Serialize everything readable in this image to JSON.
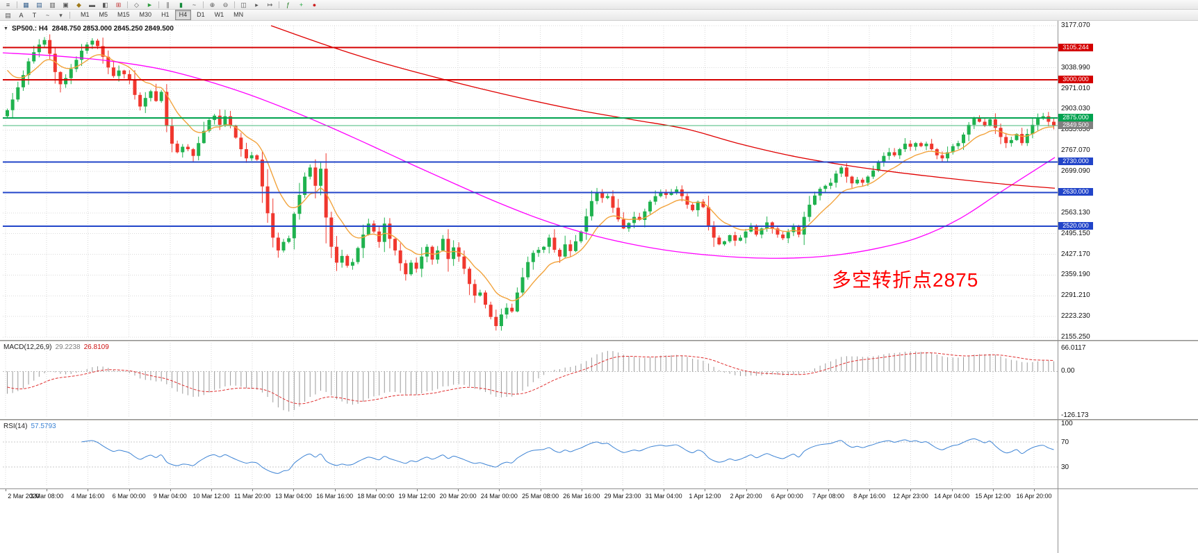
{
  "toolbar": {
    "row1_groups": [
      [
        {
          "name": "toolbars-menu-icon",
          "glyph": "≡",
          "color": "#555555"
        }
      ],
      [
        {
          "name": "new-chart-icon",
          "glyph": "▦",
          "color": "#36618e"
        },
        {
          "name": "profiles-icon",
          "glyph": "▤",
          "color": "#36618e"
        },
        {
          "name": "market-watch-icon",
          "glyph": "▥",
          "color": "#555555"
        },
        {
          "name": "data-window-icon",
          "glyph": "▣",
          "color": "#555555"
        },
        {
          "name": "navigator-icon",
          "glyph": "◆",
          "color": "#a07a1a"
        },
        {
          "name": "terminal-icon",
          "glyph": "▬",
          "color": "#555555"
        },
        {
          "name": "strategy-tester-icon",
          "glyph": "◧",
          "color": "#555555"
        },
        {
          "name": "new-order-icon",
          "glyph": "⊞",
          "color": "#c03030"
        }
      ],
      [
        {
          "name": "metaeditor-icon",
          "glyph": "◇",
          "color": "#555555"
        },
        {
          "name": "autotrading-icon",
          "glyph": "►",
          "color": "#2c9c3c"
        }
      ],
      [
        {
          "name": "bar-chart-icon",
          "glyph": "∥",
          "color": "#555555"
        },
        {
          "name": "candlestick-chart-icon",
          "glyph": "▮",
          "color": "#138a3a"
        },
        {
          "name": "line-chart-icon",
          "glyph": "~",
          "color": "#555555"
        }
      ],
      [
        {
          "name": "zoom-in-icon",
          "glyph": "⊕",
          "color": "#555555"
        },
        {
          "name": "zoom-out-icon",
          "glyph": "⊖",
          "color": "#555555"
        }
      ],
      [
        {
          "name": "tile-windows-icon",
          "glyph": "◫",
          "color": "#555555"
        },
        {
          "name": "auto-scroll-icon",
          "glyph": "▸",
          "color": "#555555"
        },
        {
          "name": "chart-shift-icon",
          "glyph": "↦",
          "color": "#555555"
        }
      ],
      [
        {
          "name": "indicators-icon",
          "glyph": "ƒ",
          "color": "#1d7a1d"
        },
        {
          "name": "add-object-icon",
          "glyph": "+",
          "color": "#1ea63c"
        },
        {
          "name": "record-icon",
          "glyph": "●",
          "color": "#cc2020"
        }
      ]
    ],
    "row2_icons": [
      {
        "name": "objects-list-icon",
        "glyph": "▤",
        "color": "#555555"
      },
      {
        "name": "text-tool-icon",
        "glyph": "A",
        "color": "#333333"
      },
      {
        "name": "text-label-icon",
        "glyph": "T",
        "color": "#333333"
      },
      {
        "name": "polyline-tool-icon",
        "glyph": "~",
        "color": "#555555"
      },
      {
        "name": "polyline-dropdown-icon",
        "glyph": "▾",
        "color": "#555555"
      }
    ],
    "timeframes": {
      "options": [
        "M1",
        "M5",
        "M15",
        "M30",
        "H1",
        "H4",
        "D1",
        "W1",
        "MN"
      ],
      "selected": "H4"
    }
  },
  "chart": {
    "dropdown_glyph": "▼",
    "title": {
      "symbol_period": "SP500.: H4",
      "ohlc": "2848.750 2853.000 2845.250 2849.500"
    },
    "annotation": {
      "text": "多空转折点2875",
      "color": "#ff0000"
    },
    "price_axis": {
      "labels": [
        "3177.070",
        "3038.990",
        "2971.010",
        "2903.030",
        "2835.050",
        "2767.070",
        "2699.090",
        "2563.130",
        "2495.150",
        "2427.170",
        "2359.190",
        "2291.210",
        "2223.230",
        "2155.250"
      ],
      "label_values": [
        3177.07,
        3038.99,
        2971.01,
        2903.03,
        2835.05,
        2767.07,
        2699.09,
        2563.13,
        2495.15,
        2427.17,
        2359.19,
        2291.21,
        2223.23,
        2155.25
      ],
      "badges": [
        {
          "label": "3105.244",
          "value": 3105.244,
          "color": "#d40000"
        },
        {
          "label": "3000.000",
          "value": 3000.0,
          "color": "#d40000"
        },
        {
          "label": "2875.000",
          "value": 2875.0,
          "color": "#00a24f"
        },
        {
          "label": "2849.500",
          "value": 2849.5,
          "color": "#808080"
        },
        {
          "label": "2730.000",
          "value": 2730.0,
          "color": "#2144c9"
        },
        {
          "label": "2630.000",
          "value": 2630.0,
          "color": "#2144c9"
        },
        {
          "label": "2520.000",
          "value": 2520.0,
          "color": "#2144c9"
        }
      ]
    },
    "hlines": [
      {
        "value": 3105.244,
        "color": "#d40000",
        "width": 2
      },
      {
        "value": 3000.0,
        "color": "#d40000",
        "width": 2
      },
      {
        "value": 2875.0,
        "color": "#00a24f",
        "width": 2
      },
      {
        "value": 2849.5,
        "color": "#46b878",
        "width": 1
      },
      {
        "value": 2730.0,
        "color": "#2144c9",
        "width": 2
      },
      {
        "value": 2630.0,
        "color": "#2144c9",
        "width": 2
      },
      {
        "value": 2520.0,
        "color": "#2144c9",
        "width": 2
      }
    ],
    "time_labels": [
      "2 Mar 2020",
      "3 Mar 08:00",
      "4 Mar 16:00",
      "6 Mar 00:00",
      "9 Mar 04:00",
      "10 Mar 12:00",
      "11 Mar 20:00",
      "13 Mar 04:00",
      "16 Mar 16:00",
      "18 Mar 00:00",
      "19 Mar 12:00",
      "20 Mar 20:00",
      "24 Mar 00:00",
      "25 Mar 08:00",
      "26 Mar 16:00",
      "29 Mar 23:00",
      "31 Mar 04:00",
      "1 Apr 12:00",
      "2 Apr 20:00",
      "6 Apr 00:00",
      "7 Apr 08:00",
      "8 Apr 16:00",
      "12 Apr 23:00",
      "14 Apr 04:00",
      "15 Apr 12:00",
      "16 Apr 20:00"
    ]
  },
  "chart_data": {
    "type": "candlestick",
    "symbol": "SP500",
    "timeframe": "H4",
    "title": "SP500.: H4",
    "last_ohlc": {
      "open": 2848.75,
      "high": 2853.0,
      "low": 2845.25,
      "close": 2849.5
    },
    "price_range": {
      "min": 2153.19,
      "max": 3177.07
    },
    "first_open": 2880,
    "closes": [
      2900,
      2935,
      2975,
      3015,
      3060,
      3090,
      3115,
      3130,
      3085,
      3025,
      2985,
      3005,
      3035,
      3065,
      3095,
      3115,
      3128,
      3110,
      3075,
      3040,
      3012,
      3030,
      3018,
      2998,
      2950,
      2912,
      2940,
      2962,
      2930,
      2960,
      2848,
      2790,
      2762,
      2780,
      2772,
      2750,
      2792,
      2832,
      2868,
      2882,
      2852,
      2880,
      2848,
      2810,
      2772,
      2742,
      2752,
      2738,
      2650,
      2562,
      2482,
      2440,
      2468,
      2480,
      2560,
      2622,
      2682,
      2712,
      2652,
      2708,
      2548,
      2452,
      2400,
      2422,
      2390,
      2402,
      2448,
      2492,
      2528,
      2502,
      2468,
      2528,
      2478,
      2440,
      2398,
      2362,
      2400,
      2380,
      2420,
      2452,
      2410,
      2440,
      2478,
      2412,
      2450,
      2420,
      2380,
      2330,
      2292,
      2302,
      2262,
      2222,
      2192,
      2230,
      2252,
      2240,
      2302,
      2352,
      2402,
      2432,
      2442,
      2452,
      2482,
      2442,
      2420,
      2460,
      2438,
      2470,
      2502,
      2552,
      2602,
      2630,
      2612,
      2618,
      2580,
      2542,
      2512,
      2530,
      2550,
      2540,
      2568,
      2600,
      2618,
      2630,
      2622,
      2632,
      2640,
      2618,
      2590,
      2572,
      2600,
      2582,
      2522,
      2482,
      2460,
      2470,
      2490,
      2472,
      2482,
      2502,
      2522,
      2492,
      2512,
      2532,
      2512,
      2492,
      2480,
      2500,
      2520,
      2492,
      2550,
      2590,
      2620,
      2642,
      2652,
      2662,
      2692,
      2712,
      2682,
      2660,
      2672,
      2662,
      2682,
      2702,
      2730,
      2750,
      2762,
      2752,
      2772,
      2790,
      2780,
      2792,
      2782,
      2790,
      2772,
      2752,
      2742,
      2762,
      2782,
      2792,
      2820,
      2852,
      2872,
      2862,
      2850,
      2870,
      2842,
      2812,
      2792,
      2802,
      2822,
      2792,
      2822,
      2852,
      2872,
      2880,
      2862,
      2849.5
    ],
    "up_color": "#1fb24e",
    "down_color": "#f0372e",
    "ma_orange": {
      "type": "ema",
      "period": 10,
      "seed": 3060,
      "color": "#f2a33c"
    },
    "ma_magenta": {
      "color": "#ff00ff",
      "anchors": [
        [
          0,
          3088
        ],
        [
          0.05,
          3078
        ],
        [
          0.1,
          3062
        ],
        [
          0.15,
          3035
        ],
        [
          0.19,
          3000
        ],
        [
          0.23,
          2956
        ],
        [
          0.27,
          2904
        ],
        [
          0.31,
          2846
        ],
        [
          0.35,
          2784
        ],
        [
          0.39,
          2720
        ],
        [
          0.43,
          2658
        ],
        [
          0.47,
          2598
        ],
        [
          0.51,
          2544
        ],
        [
          0.55,
          2500
        ],
        [
          0.59,
          2466
        ],
        [
          0.63,
          2441
        ],
        [
          0.67,
          2425
        ],
        [
          0.71,
          2416
        ],
        [
          0.75,
          2415
        ],
        [
          0.79,
          2424
        ],
        [
          0.83,
          2446
        ],
        [
          0.87,
          2482
        ],
        [
          0.91,
          2545
        ],
        [
          0.95,
          2635
        ],
        [
          1,
          2745
        ]
      ]
    },
    "ma_red": {
      "color": "#e00000",
      "anchors": [
        [
          0.255,
          3177
        ],
        [
          0.3,
          3122
        ],
        [
          0.35,
          3066
        ],
        [
          0.4,
          3018
        ],
        [
          0.45,
          2974
        ],
        [
          0.5,
          2934
        ],
        [
          0.55,
          2898
        ],
        [
          0.6,
          2868
        ],
        [
          0.65,
          2838
        ],
        [
          0.7,
          2790
        ],
        [
          0.75,
          2750
        ],
        [
          0.8,
          2720
        ],
        [
          0.85,
          2696
        ],
        [
          0.9,
          2676
        ],
        [
          0.95,
          2658
        ],
        [
          1,
          2644
        ]
      ]
    }
  },
  "macd": {
    "name": "MACD(12,26,9)",
    "value_main": "29.2238",
    "value_signal": "26.8109",
    "axis_labels": [
      "66.0117",
      "0.00",
      "-126.173"
    ],
    "axis_values": [
      66.0117,
      0,
      -126.173
    ],
    "histogram_color": "#9a9a9a",
    "signal_color": "#e03030"
  },
  "rsi": {
    "name": "RSI(14)",
    "value": "57.5793",
    "axis_labels": [
      "100",
      "70",
      "30"
    ],
    "axis_values": [
      100,
      70,
      30
    ],
    "levels": [
      70,
      30
    ],
    "line_color": "#3b82d4"
  }
}
